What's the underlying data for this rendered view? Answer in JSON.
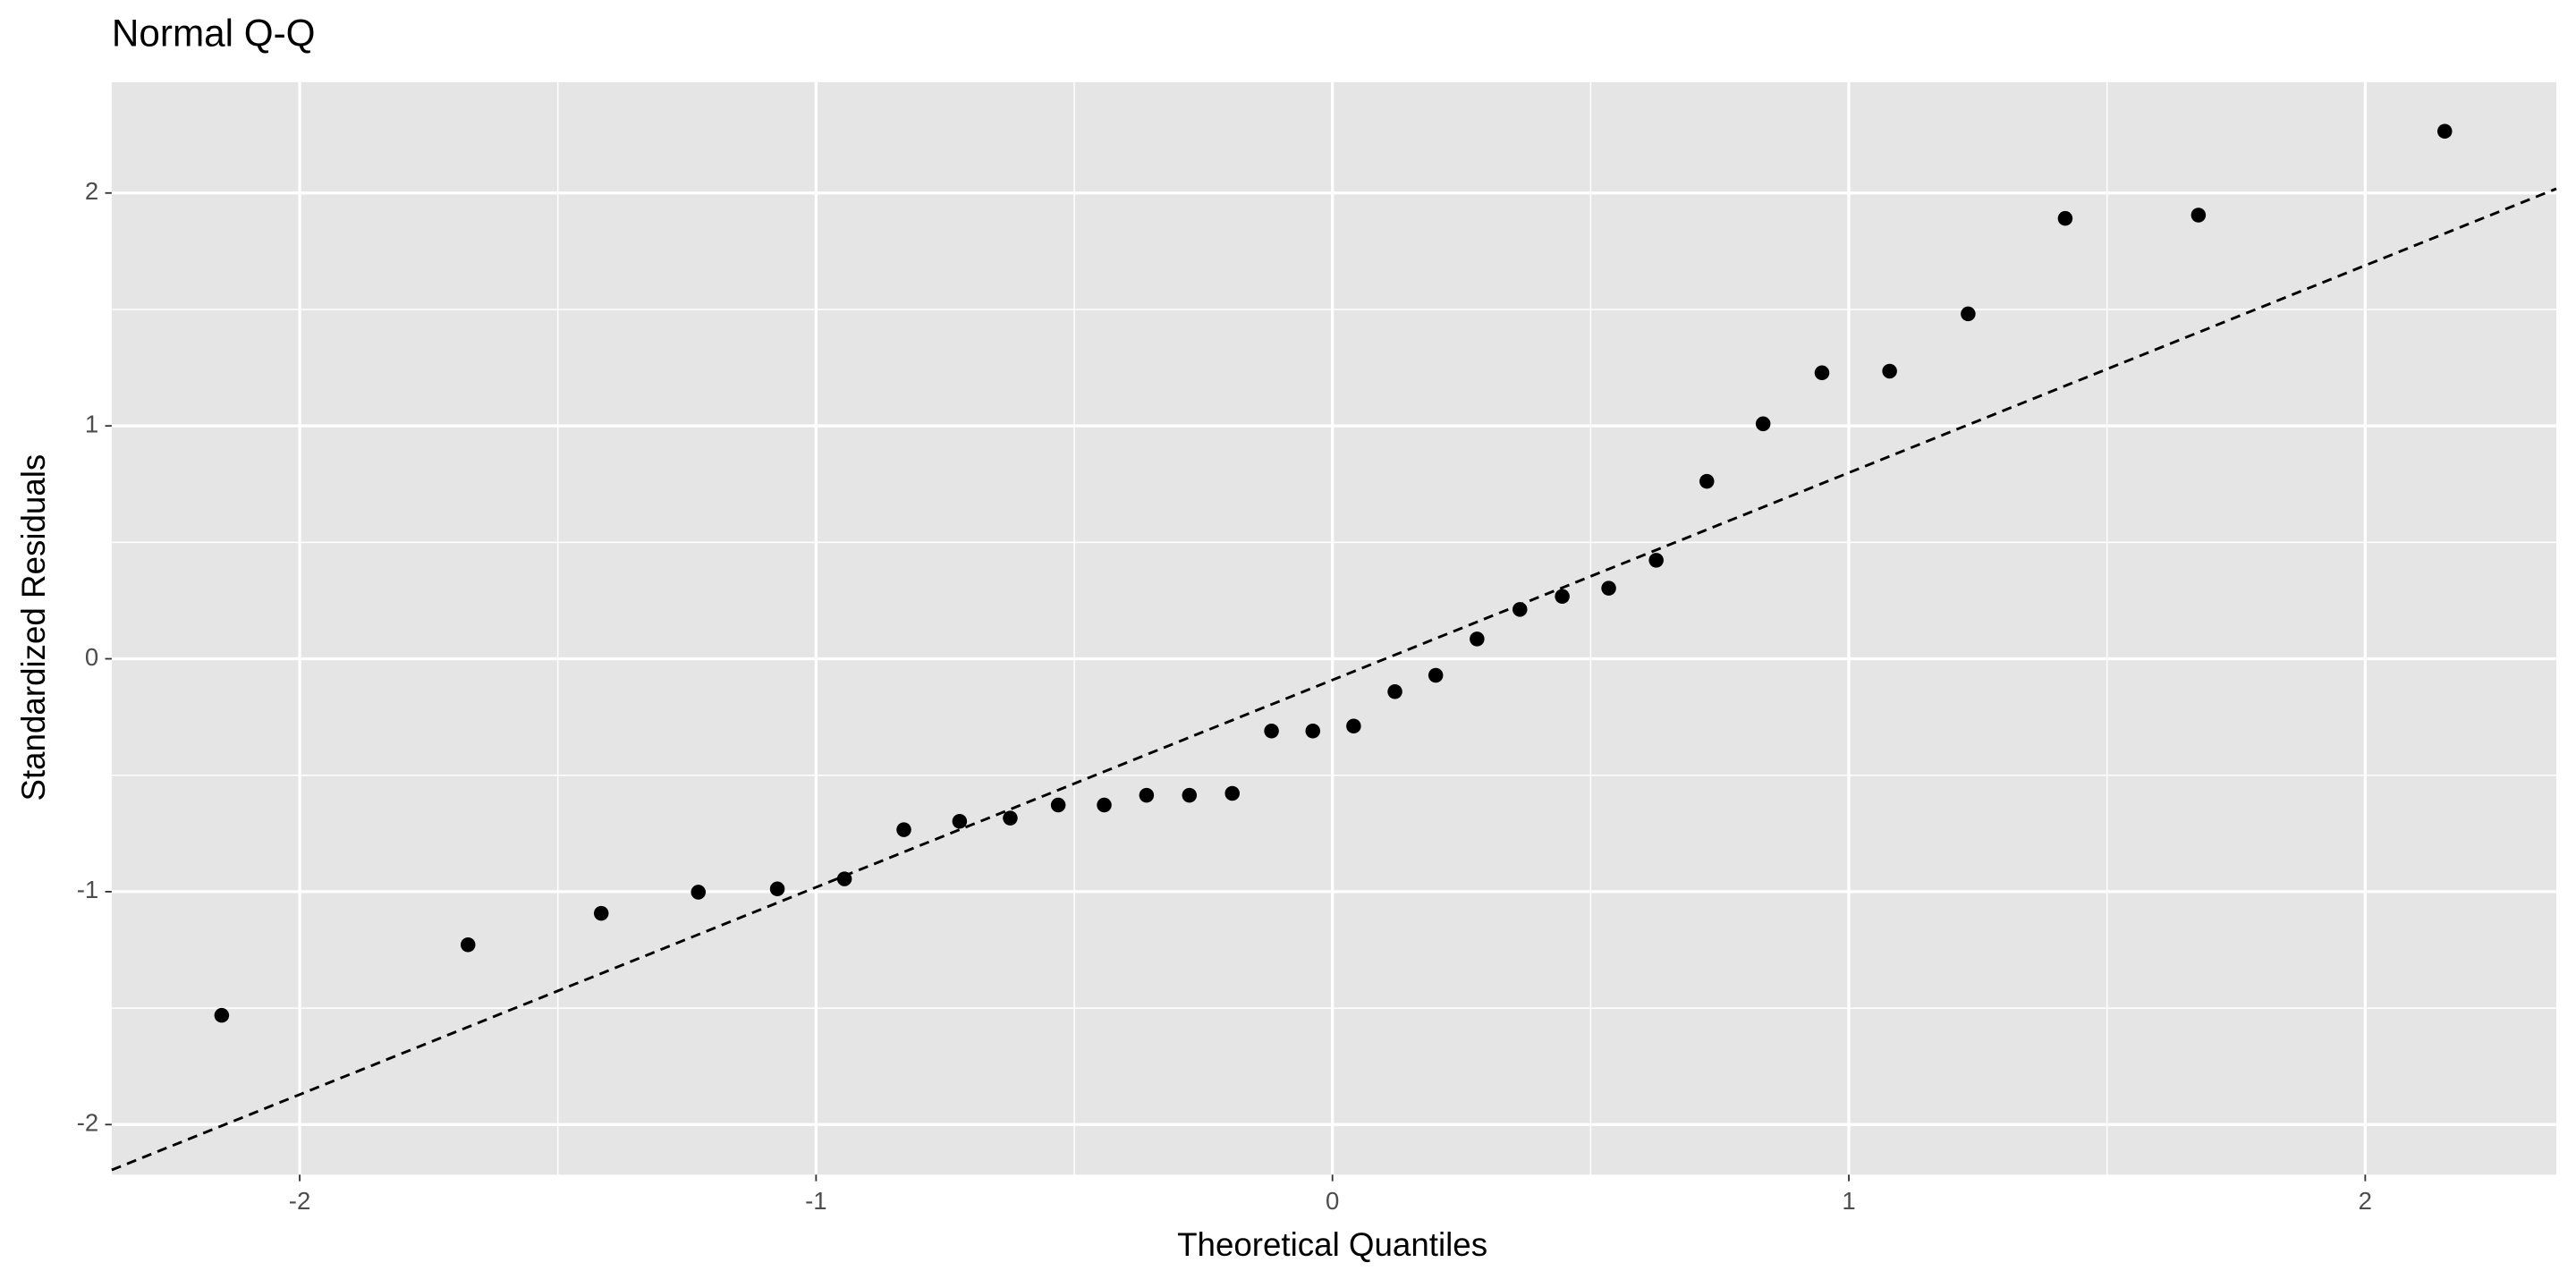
{
  "chart_data": {
    "type": "scatter",
    "title": "Normal Q-Q",
    "x_label": "Theoretical Quantiles",
    "y_label": "Standardized Residuals",
    "x": [
      -2.151,
      -1.674,
      -1.416,
      -1.228,
      -1.075,
      -0.945,
      -0.83,
      -0.722,
      -0.624,
      -0.531,
      -0.442,
      -0.36,
      -0.277,
      -0.194,
      -0.118,
      -0.038,
      0.041,
      0.121,
      0.2,
      0.28,
      0.363,
      0.445,
      0.535,
      0.627,
      0.725,
      0.834,
      0.948,
      1.079,
      1.231,
      1.419,
      1.677,
      2.154
    ],
    "values": [
      -1.531,
      -1.228,
      -1.093,
      -1.002,
      -0.988,
      -0.945,
      -0.734,
      -0.698,
      -0.684,
      -0.628,
      -0.628,
      -0.586,
      -0.586,
      -0.578,
      -0.31,
      -0.31,
      -0.289,
      -0.141,
      -0.071,
      0.085,
      0.212,
      0.268,
      0.303,
      0.423,
      0.762,
      1.009,
      1.228,
      1.235,
      1.481,
      1.891,
      1.905,
      2.265
    ],
    "color": "#000000",
    "reference_line": {
      "slope": 0.89,
      "intercept": -0.091,
      "color": "#000000",
      "dashed": true
    },
    "xlim": [
      -2.364,
      2.37
    ],
    "ylim": [
      -2.215,
      2.476
    ],
    "xticks": [
      -2,
      -1,
      0,
      1,
      2
    ],
    "yticks": [
      -2,
      -1,
      0,
      1,
      2
    ],
    "x_minor_ticks": [
      -1.5,
      -0.5,
      0.5,
      1.5
    ],
    "y_minor_ticks": [
      -1.5,
      -0.5,
      0.5,
      1.5
    ],
    "grid": true,
    "panel_color": "#e5e5e5"
  }
}
